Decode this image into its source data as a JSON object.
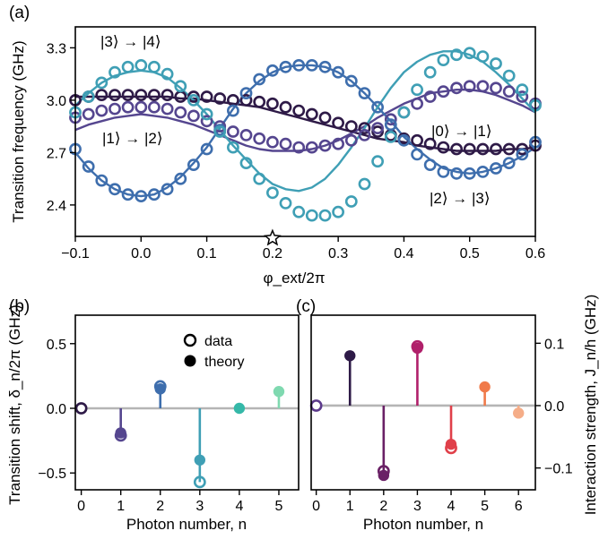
{
  "panels": {
    "a": "(a)",
    "b": "(b)",
    "c": "(c)"
  },
  "colors": {
    "s01": "#2e1a47",
    "s12": "#55468f",
    "s23": "#3e6ead",
    "s34": "#3f9fb5",
    "zero_line": "#b5b5b5",
    "star": "#ffffff"
  },
  "chart_data": [
    {
      "id": "a",
      "type": "line",
      "title": "",
      "xlabel": "φ_ext/2π",
      "ylabel": "Transition frequency (GHz)",
      "xlim": [
        -0.1,
        0.6
      ],
      "ylim": [
        2.22,
        3.42
      ],
      "xticks": [
        "-0.1",
        "0.0",
        "0.1",
        "0.2",
        "0.3",
        "0.4",
        "0.5",
        "0.6"
      ],
      "xtick_values": [
        -0.1,
        0.0,
        0.1,
        0.2,
        0.3,
        0.4,
        0.5,
        0.6
      ],
      "yticks": [
        "2.4",
        "2.7",
        "3.0",
        "3.3"
      ],
      "ytick_values": [
        2.4,
        2.7,
        3.0,
        3.3
      ],
      "marker_annotation": {
        "x": 0.2,
        "symbol": "star"
      },
      "x": [
        -0.1,
        -0.08,
        -0.06,
        -0.04,
        -0.02,
        0.0,
        0.02,
        0.04,
        0.06,
        0.08,
        0.1,
        0.12,
        0.14,
        0.16,
        0.18,
        0.2,
        0.22,
        0.24,
        0.26,
        0.28,
        0.3,
        0.32,
        0.34,
        0.36,
        0.38,
        0.4,
        0.42,
        0.44,
        0.46,
        0.48,
        0.5,
        0.52,
        0.54,
        0.56,
        0.58,
        0.6
      ],
      "series": [
        {
          "name": "|0⟩ → |1⟩",
          "color": "#2e1a47",
          "data": [
            3.0,
            3.02,
            3.03,
            3.03,
            3.03,
            3.03,
            3.03,
            3.03,
            3.02,
            3.02,
            3.02,
            3.01,
            3.0,
            3.0,
            2.99,
            2.98,
            2.96,
            2.94,
            2.92,
            2.9,
            2.87,
            2.85,
            2.84,
            2.82,
            2.8,
            2.78,
            2.77,
            2.75,
            2.73,
            2.72,
            2.72,
            2.72,
            2.72,
            2.72,
            2.72,
            2.74
          ],
          "theory": [
            3.02,
            3.02,
            3.02,
            3.02,
            3.02,
            3.02,
            3.02,
            3.02,
            3.01,
            3.01,
            3.0,
            2.99,
            2.98,
            2.97,
            2.96,
            2.94,
            2.92,
            2.9,
            2.88,
            2.86,
            2.84,
            2.82,
            2.8,
            2.78,
            2.77,
            2.76,
            2.74,
            2.73,
            2.72,
            2.71,
            2.71,
            2.71,
            2.71,
            2.72,
            2.72,
            2.73
          ]
        },
        {
          "name": "|1⟩ → |2⟩",
          "color": "#55468f",
          "data": [
            2.9,
            2.92,
            2.94,
            2.95,
            2.96,
            2.96,
            2.96,
            2.95,
            2.93,
            2.91,
            2.88,
            2.85,
            2.82,
            2.8,
            2.78,
            2.76,
            2.75,
            2.73,
            2.73,
            2.74,
            2.75,
            2.77,
            2.8,
            2.84,
            2.89,
            2.93,
            2.98,
            3.02,
            3.05,
            3.07,
            3.08,
            3.08,
            3.07,
            3.05,
            3.02,
            2.98
          ],
          "theory": [
            2.83,
            2.86,
            2.88,
            2.9,
            2.91,
            2.92,
            2.91,
            2.9,
            2.88,
            2.86,
            2.83,
            2.8,
            2.77,
            2.74,
            2.72,
            2.71,
            2.71,
            2.71,
            2.72,
            2.74,
            2.77,
            2.81,
            2.85,
            2.9,
            2.94,
            2.98,
            3.01,
            3.04,
            3.05,
            3.06,
            3.06,
            3.05,
            3.03,
            3.0,
            2.97,
            2.93
          ]
        },
        {
          "name": "|2⟩ → |3⟩",
          "color": "#3e6ead",
          "data": [
            2.72,
            2.62,
            2.54,
            2.49,
            2.46,
            2.45,
            2.46,
            2.49,
            2.55,
            2.63,
            2.72,
            2.83,
            2.94,
            3.04,
            3.12,
            3.17,
            3.19,
            3.2,
            3.2,
            3.19,
            3.16,
            3.11,
            3.04,
            2.96,
            2.86,
            2.77,
            2.69,
            2.63,
            2.59,
            2.58,
            2.58,
            2.59,
            2.61,
            2.64,
            2.69,
            2.76
          ],
          "theory": [
            2.7,
            2.61,
            2.54,
            2.49,
            2.46,
            2.45,
            2.46,
            2.5,
            2.56,
            2.64,
            2.73,
            2.84,
            2.95,
            3.04,
            3.11,
            3.16,
            3.19,
            3.2,
            3.2,
            3.19,
            3.16,
            3.11,
            3.04,
            2.96,
            2.88,
            2.79,
            2.72,
            2.66,
            2.61,
            2.59,
            2.58,
            2.59,
            2.61,
            2.64,
            2.68,
            2.73
          ]
        },
        {
          "name": "|3⟩ → |4⟩",
          "color": "#3f9fb5",
          "data": [
            2.93,
            3.02,
            3.1,
            3.16,
            3.19,
            3.2,
            3.19,
            3.15,
            3.08,
            3.0,
            2.92,
            2.82,
            2.73,
            2.64,
            2.55,
            2.47,
            2.41,
            2.36,
            2.34,
            2.34,
            2.36,
            2.42,
            2.52,
            2.65,
            2.79,
            2.93,
            3.06,
            3.16,
            3.23,
            3.26,
            3.27,
            3.25,
            3.21,
            3.14,
            3.06,
            2.97
          ],
          "theory": [
            2.97,
            3.04,
            3.1,
            3.14,
            3.16,
            3.17,
            3.16,
            3.13,
            3.07,
            3.0,
            2.92,
            2.83,
            2.74,
            2.66,
            2.58,
            2.52,
            2.49,
            2.48,
            2.5,
            2.55,
            2.63,
            2.73,
            2.84,
            2.96,
            3.07,
            3.16,
            3.22,
            3.26,
            3.28,
            3.28,
            3.26,
            3.22,
            3.16,
            3.09,
            3.01,
            2.93
          ]
        }
      ],
      "annotations": {
        "s34": "|3⟩ → |4⟩",
        "s12": "|1⟩ → |2⟩",
        "s01": "|0⟩ → |1⟩",
        "s23": "|2⟩ → |3⟩"
      }
    },
    {
      "id": "b",
      "type": "stem",
      "xlabel": "Photon number, n",
      "ylabel": "Transition shift, δ_n/2π (GHz)",
      "xlim": [
        -0.15,
        5.5
      ],
      "ylim": [
        -0.63,
        0.72
      ],
      "xticks": [
        "0",
        "1",
        "2",
        "3",
        "4",
        "5"
      ],
      "xtick_values": [
        0,
        1,
        2,
        3,
        4,
        5
      ],
      "yticks": [
        "-0.5",
        "0.0",
        "0.5"
      ],
      "ytick_values": [
        -0.5,
        0.0,
        0.5
      ],
      "colors": [
        "#2e1a47",
        "#55468f",
        "#3e6ead",
        "#3f9fb5",
        "#35b8a8",
        "#7fd9b0"
      ],
      "data": [
        0.0,
        -0.21,
        0.17,
        -0.57,
        null,
        null
      ],
      "theory": [
        0.0,
        -0.19,
        0.15,
        -0.4,
        0.0,
        0.13
      ],
      "legend": {
        "data": "data",
        "theory": "theory"
      }
    },
    {
      "id": "c",
      "type": "stem",
      "xlabel": "Photon number, n",
      "ylabel": "Interaction strength, J_n/h (GHz)",
      "xlim": [
        -0.15,
        6.5
      ],
      "ylim": [
        -0.135,
        0.145
      ],
      "xticks": [
        "0",
        "1",
        "2",
        "3",
        "4",
        "5",
        "6"
      ],
      "xtick_values": [
        0,
        1,
        2,
        3,
        4,
        5,
        6
      ],
      "yticks": [
        "-0.1",
        "0.0",
        "0.1"
      ],
      "ytick_values": [
        -0.1,
        0.0,
        0.1
      ],
      "colors": [
        "#5c3a8c",
        "#2e1a47",
        "#6a2166",
        "#b0206a",
        "#e0404a",
        "#f07a4a",
        "#f5ad88"
      ],
      "data": [
        0.0,
        null,
        -0.105,
        0.095,
        -0.068,
        null,
        null
      ],
      "theory": [
        0.0,
        0.08,
        -0.112,
        0.092,
        -0.062,
        0.03,
        -0.012
      ]
    }
  ]
}
